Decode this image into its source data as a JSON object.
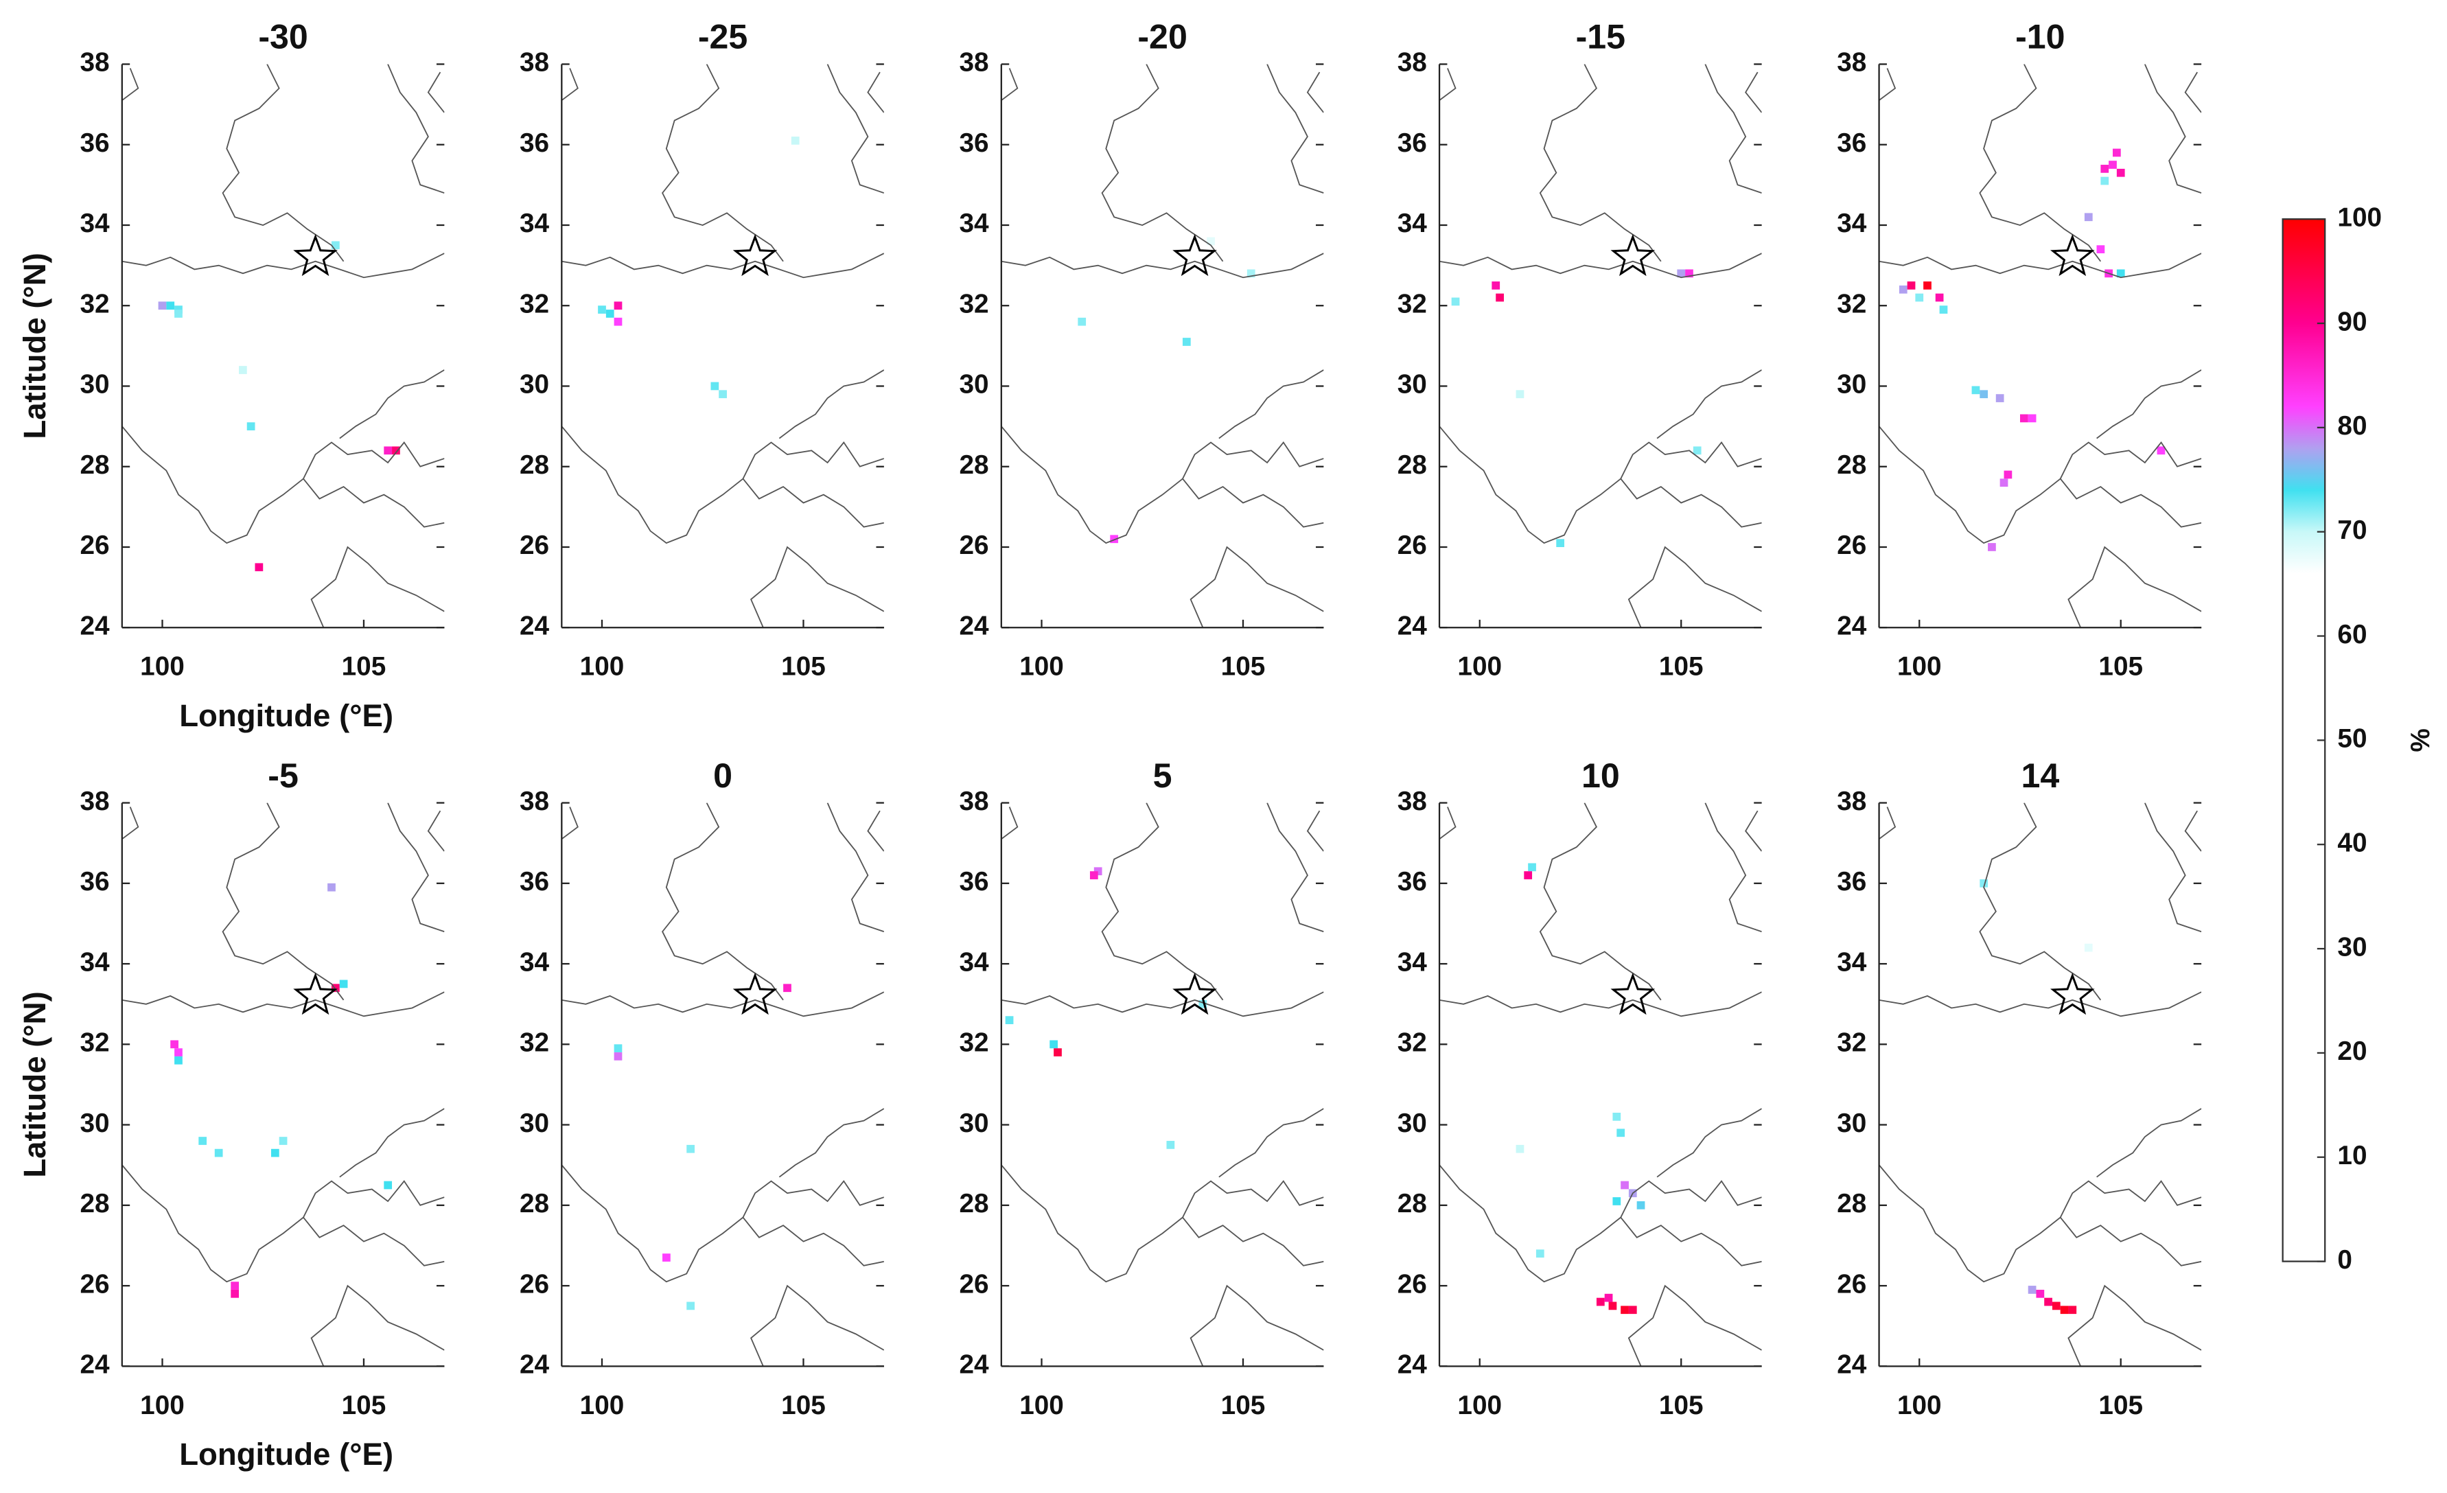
{
  "chart_data": [
    {
      "type": "heatmap",
      "title": "-30",
      "xlim": [
        99,
        107
      ],
      "ylim": [
        24,
        38
      ],
      "xticks": [
        100,
        105
      ],
      "yticks": [
        24,
        26,
        28,
        30,
        32,
        34,
        36,
        38
      ],
      "xlabel": "Longitude (°E)",
      "ylabel": "Latitude (°N)",
      "x": [
        100.0,
        100.2,
        100.4,
        100.4,
        102.2,
        102.0,
        105.6,
        105.8,
        102.4,
        104.3
      ],
      "y": [
        32.0,
        32.0,
        31.9,
        31.8,
        29.0,
        30.4,
        28.4,
        28.4,
        25.5,
        33.5
      ],
      "values": [
        78,
        74,
        73,
        72,
        73,
        70,
        86,
        92,
        90,
        72
      ]
    },
    {
      "type": "heatmap",
      "title": "-25",
      "xlim": [
        99,
        107
      ],
      "ylim": [
        24,
        38
      ],
      "xticks": [
        100,
        105
      ],
      "yticks": [
        24,
        26,
        28,
        30,
        32,
        34,
        36,
        38
      ],
      "x": [
        100.0,
        100.2,
        100.4,
        100.4,
        102.8,
        103.0,
        104.8
      ],
      "y": [
        31.9,
        31.8,
        32.0,
        31.6,
        30.0,
        29.8,
        36.1
      ],
      "values": [
        73,
        74,
        88,
        82,
        73,
        72,
        70
      ]
    },
    {
      "type": "heatmap",
      "title": "-20",
      "xlim": [
        99,
        107
      ],
      "ylim": [
        24,
        38
      ],
      "xticks": [
        100,
        105
      ],
      "yticks": [
        24,
        26,
        28,
        30,
        32,
        34,
        36,
        38
      ],
      "x": [
        101.0,
        103.6,
        105.2,
        101.8,
        104.2
      ],
      "y": [
        31.6,
        31.1,
        32.8,
        26.2,
        33.6
      ],
      "values": [
        72,
        73,
        71,
        82,
        68
      ]
    },
    {
      "type": "heatmap",
      "title": "-15",
      "xlim": [
        99,
        107
      ],
      "ylim": [
        24,
        38
      ],
      "xticks": [
        100,
        105
      ],
      "yticks": [
        24,
        26,
        28,
        30,
        32,
        34,
        36,
        38
      ],
      "x": [
        100.4,
        100.5,
        99.4,
        105.2,
        105.0,
        101.0,
        102.0,
        105.4
      ],
      "y": [
        32.5,
        32.2,
        32.1,
        32.8,
        32.8,
        29.8,
        26.1,
        28.4
      ],
      "values": [
        88,
        92,
        72,
        84,
        78,
        70,
        73,
        72
      ]
    },
    {
      "type": "heatmap",
      "title": "-10",
      "xlim": [
        99,
        107
      ],
      "ylim": [
        24,
        38
      ],
      "xticks": [
        100,
        105
      ],
      "yticks": [
        24,
        26,
        28,
        30,
        32,
        34,
        36,
        38
      ],
      "x": [
        104.8,
        104.6,
        105.0,
        104.6,
        104.9,
        99.6,
        99.8,
        100.0,
        100.2,
        100.5,
        100.6,
        101.4,
        101.6,
        102.0,
        102.6,
        102.8,
        104.5,
        104.7,
        105.0,
        102.2,
        102.1,
        101.8,
        104.2,
        106.0
      ],
      "y": [
        35.5,
        35.4,
        35.3,
        35.1,
        35.8,
        32.4,
        32.5,
        32.2,
        32.5,
        32.2,
        31.9,
        29.9,
        29.8,
        29.7,
        29.2,
        29.2,
        33.4,
        32.8,
        32.8,
        27.8,
        27.6,
        26.0,
        34.2,
        28.4
      ],
      "values": [
        84,
        86,
        88,
        72,
        85,
        78,
        92,
        72,
        98,
        88,
        73,
        73,
        76,
        78,
        86,
        82,
        82,
        84,
        74,
        85,
        80,
        80,
        78,
        82
      ]
    },
    {
      "type": "heatmap",
      "title": "-5",
      "xlim": [
        99,
        107
      ],
      "ylim": [
        24,
        38
      ],
      "xticks": [
        100,
        105
      ],
      "yticks": [
        24,
        26,
        28,
        30,
        32,
        34,
        36,
        38
      ],
      "xlabel": "Longitude (°E)",
      "ylabel": "Latitude (°N)",
      "x": [
        100.3,
        100.4,
        100.4,
        101.0,
        101.4,
        102.8,
        103.0,
        104.3,
        104.5,
        104.2,
        101.8,
        101.8,
        105.6
      ],
      "y": [
        32.0,
        31.8,
        31.6,
        29.6,
        29.3,
        29.3,
        29.6,
        33.4,
        33.5,
        35.9,
        26.0,
        25.8,
        28.5
      ],
      "values": [
        84,
        82,
        74,
        73,
        73,
        74,
        72,
        92,
        74,
        78,
        85,
        88,
        74
      ]
    },
    {
      "type": "heatmap",
      "title": "0",
      "xlim": [
        99,
        107
      ],
      "ylim": [
        24,
        38
      ],
      "xticks": [
        100,
        105
      ],
      "yticks": [
        24,
        26,
        28,
        30,
        32,
        34,
        36,
        38
      ],
      "x": [
        100.4,
        100.4,
        104.6,
        102.2,
        101.6,
        102.2
      ],
      "y": [
        31.9,
        31.7,
        33.4,
        29.4,
        26.7,
        25.5
      ],
      "values": [
        73,
        80,
        86,
        72,
        82,
        72
      ]
    },
    {
      "type": "heatmap",
      "title": "5",
      "xlim": [
        99,
        107
      ],
      "ylim": [
        24,
        38
      ],
      "xticks": [
        100,
        105
      ],
      "yticks": [
        24,
        26,
        28,
        30,
        32,
        34,
        36,
        38
      ],
      "x": [
        100.3,
        100.4,
        99.2,
        101.4,
        101.3,
        103.2,
        104.0
      ],
      "y": [
        32.0,
        31.8,
        32.6,
        36.3,
        36.2,
        29.5,
        33.0
      ],
      "values": [
        74,
        95,
        73,
        80,
        86,
        72,
        72
      ]
    },
    {
      "type": "heatmap",
      "title": "10",
      "xlim": [
        99,
        107
      ],
      "ylim": [
        24,
        38
      ],
      "xticks": [
        100,
        105
      ],
      "yticks": [
        24,
        26,
        28,
        30,
        32,
        34,
        36,
        38
      ],
      "x": [
        101.3,
        101.2,
        103.4,
        103.5,
        103.6,
        103.8,
        103.4,
        104.0,
        101.0,
        103.0,
        103.3,
        103.6,
        103.8,
        103.2,
        101.5
      ],
      "y": [
        36.4,
        36.2,
        30.2,
        29.8,
        28.5,
        28.3,
        28.1,
        28.0,
        29.4,
        25.6,
        25.5,
        25.4,
        25.4,
        25.7,
        26.8
      ],
      "values": [
        73,
        90,
        72,
        73,
        80,
        78,
        74,
        75,
        70,
        92,
        95,
        97,
        94,
        88,
        72
      ]
    },
    {
      "type": "heatmap",
      "title": "14",
      "xlim": [
        99,
        107
      ],
      "ylim": [
        24,
        38
      ],
      "xticks": [
        100,
        105
      ],
      "yticks": [
        24,
        26,
        28,
        30,
        32,
        34,
        36,
        38
      ],
      "x": [
        101.6,
        102.8,
        103.0,
        103.2,
        103.4,
        103.6,
        103.8,
        104.2
      ],
      "y": [
        36.0,
        25.9,
        25.8,
        25.6,
        25.5,
        25.4,
        25.4,
        34.4
      ],
      "values": [
        72,
        78,
        86,
        92,
        96,
        98,
        95,
        68
      ]
    }
  ],
  "star": {
    "x": 103.8,
    "y": 33.2
  },
  "colorbar": {
    "label": "%",
    "lim": [
      0,
      100
    ],
    "ticks": [
      0,
      10,
      20,
      30,
      40,
      50,
      60,
      70,
      80,
      90,
      100
    ],
    "colorscale": [
      [
        0,
        "#ffffff"
      ],
      [
        66,
        "#ffffff"
      ],
      [
        70,
        "#c8f8f8"
      ],
      [
        74,
        "#40e0f0"
      ],
      [
        78,
        "#b0a0f0"
      ],
      [
        82,
        "#ff40ff"
      ],
      [
        90,
        "#ff0090"
      ],
      [
        100,
        "#ff0000"
      ]
    ]
  }
}
